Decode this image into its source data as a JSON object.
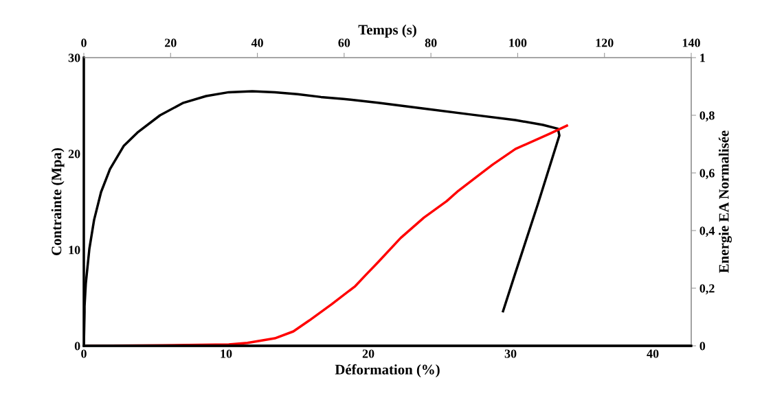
{
  "chart_data": {
    "type": "line",
    "xlabel": "Déformation (%)",
    "ylabel": "Contrainte (Mpa)",
    "y2label": "Energie EA Normalisée",
    "x2label": "Temps (s)",
    "xlim": [
      0,
      42.7
    ],
    "xticks": [
      0,
      10,
      20,
      30,
      40
    ],
    "ylim": [
      0,
      30
    ],
    "yticks": [
      0,
      10,
      20,
      30
    ],
    "x2lim": [
      0,
      140
    ],
    "x2ticks": [
      0,
      20,
      40,
      60,
      80,
      100,
      120,
      140
    ],
    "y2lim": [
      0,
      1
    ],
    "y2ticks": [
      {
        "value": 0,
        "label": "0"
      },
      {
        "value": 0.2,
        "label": "0,2"
      },
      {
        "value": 0.4,
        "label": "0,4"
      },
      {
        "value": 0.6,
        "label": "0,6"
      },
      {
        "value": 0.8,
        "label": "0,8"
      },
      {
        "value": 1,
        "label": "1"
      }
    ],
    "grid": false,
    "legend": false,
    "marker": "none",
    "line_style": "solid",
    "series": [
      {
        "color": "#000000",
        "x": [
          0,
          0.05,
          0.05,
          0.14,
          0.39,
          0.72,
          1.21,
          1.84,
          2.8,
          3.77,
          5.36,
          7.0,
          8.6,
          10.19,
          11.84,
          13.43,
          15.02,
          16.67,
          18.26,
          20.68,
          23.91,
          27.1,
          30.34,
          32.27,
          33.33,
          33.43,
          31.93,
          30.34,
          29.47
        ],
        "values": [
          0,
          3.5,
          4.1,
          6.5,
          10.1,
          13.1,
          16.0,
          18.4,
          20.8,
          22.2,
          24.0,
          25.3,
          26.0,
          26.4,
          26.5,
          26.4,
          26.2,
          25.9,
          25.7,
          25.3,
          24.7,
          24.1,
          23.5,
          23.0,
          22.6,
          21.9,
          14.8,
          7.6,
          3.6
        ]
      },
      {
        "color": "#ff0000",
        "axis": "y2",
        "x": [
          0.24,
          5.36,
          10.19,
          11.5,
          13.43,
          14.73,
          15.85,
          17.44,
          19.08,
          19.86,
          20.68,
          22.27,
          23.91,
          25.51,
          26.33,
          28.74,
          30.34,
          32.75,
          33.96
        ],
        "values": [
          0,
          0.002,
          0.005,
          0.01,
          0.026,
          0.05,
          0.088,
          0.145,
          0.207,
          0.248,
          0.29,
          0.374,
          0.445,
          0.502,
          0.538,
          0.629,
          0.683,
          0.736,
          0.764
        ]
      }
    ]
  }
}
